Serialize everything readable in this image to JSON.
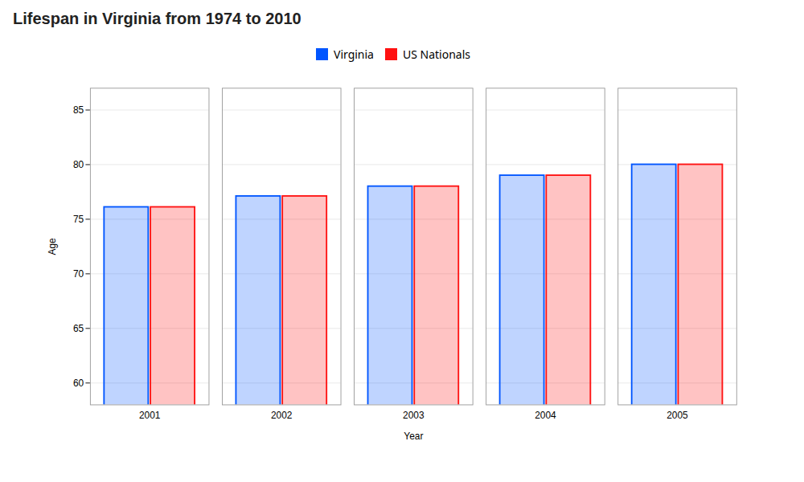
{
  "chart_data": {
    "type": "bar",
    "title": "Lifespan in Virginia from 1974 to 2010",
    "xlabel": "Year",
    "ylabel": "Age",
    "categories": [
      "2001",
      "2002",
      "2003",
      "2004",
      "2005"
    ],
    "series": [
      {
        "name": "Virginia",
        "color": "#0055ff",
        "values": [
          76.1,
          77.1,
          78.0,
          79.0,
          80.0
        ]
      },
      {
        "name": "US Nationals",
        "color": "#ff1111",
        "values": [
          76.1,
          77.1,
          78.0,
          79.0,
          80.0
        ]
      }
    ],
    "ylim": [
      58,
      87
    ],
    "yticks": [
      60,
      65,
      70,
      75,
      80,
      85
    ],
    "grid": true,
    "legend": "upper center"
  }
}
